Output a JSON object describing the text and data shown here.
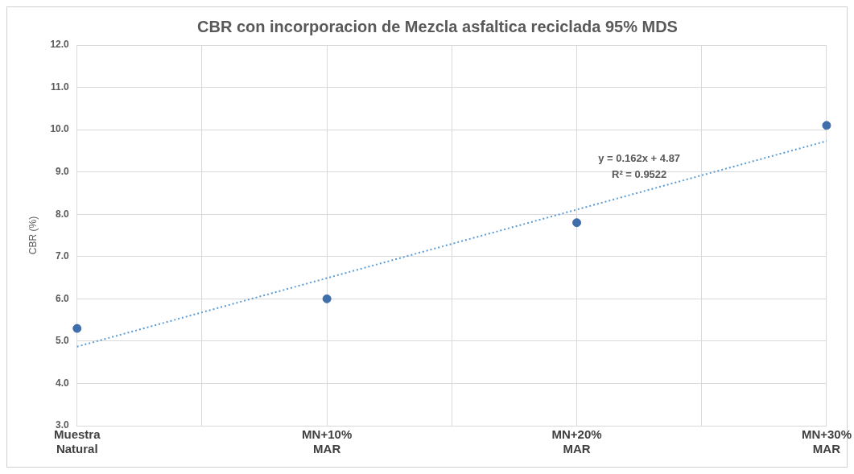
{
  "chart_data": {
    "type": "scatter",
    "title": "CBR con incorporacion de Mezcla asfaltica reciclada 95% MDS",
    "ylabel": "CBR (%)",
    "categories": [
      "Muestra Natural",
      null,
      "MN+10% MAR",
      null,
      "MN+20% MAR",
      null,
      "MN+30% MAR"
    ],
    "series": [
      {
        "color": "#3f6eaa",
        "values": [
          5.3,
          null,
          6.0,
          null,
          7.8,
          null,
          10.1
        ],
        "marker": "circle"
      },
      {
        "type": "line",
        "color": "#5b9bd5",
        "values": [
          4.87,
          null,
          null,
          null,
          null,
          null,
          9.73
        ],
        "line_style": "dotted",
        "marker": "none"
      }
    ],
    "ylim": [
      3,
      12
    ],
    "yticks": [
      {
        "value": 3,
        "label": "3.0"
      },
      {
        "value": 4,
        "label": "4.0"
      },
      {
        "value": 5,
        "label": "5.0"
      },
      {
        "value": 6,
        "label": "6.0"
      },
      {
        "value": 7,
        "label": "7.0"
      },
      {
        "value": 8,
        "label": "8.0"
      },
      {
        "value": 9,
        "label": "9.0"
      },
      {
        "value": 10,
        "label": "10.0"
      },
      {
        "value": 11,
        "label": "11.0"
      },
      {
        "value": 12,
        "label": "12.0"
      }
    ],
    "annotations": [
      "y = 0.162x + 4.87",
      "R² = 0.9522"
    ],
    "grid": true,
    "legend": false
  }
}
